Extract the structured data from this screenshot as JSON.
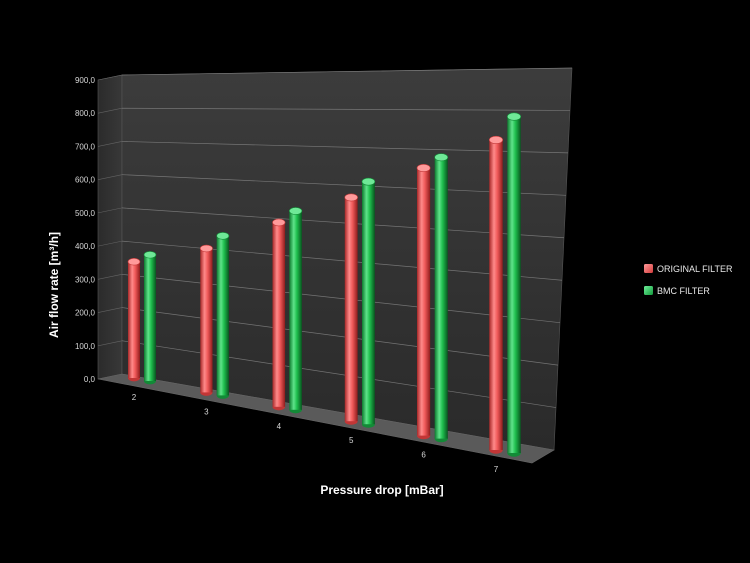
{
  "chart_data": {
    "type": "bar",
    "title": "",
    "xlabel": "Pressure drop [mBar]",
    "ylabel": "Air flow rate [m³/h]",
    "categories": [
      "2",
      "3",
      "4",
      "5",
      "6",
      "7"
    ],
    "series": [
      {
        "name": "ORIGINAL FILTER",
        "color": "#f05a5a",
        "values": [
          350,
          415,
          510,
          595,
          685,
          765
        ]
      },
      {
        "name": "BMC FILTER",
        "color": "#1fbf4e",
        "values": [
          380,
          460,
          550,
          645,
          720,
          830
        ]
      }
    ],
    "ylim": [
      0,
      900
    ],
    "yticks": [
      "0,0",
      "100,0",
      "200,0",
      "300,0",
      "400,0",
      "500,0",
      "600,0",
      "700,0",
      "800,0",
      "900,0"
    ],
    "grid": true,
    "legend_position": "right",
    "style": "3d-cylinder"
  }
}
